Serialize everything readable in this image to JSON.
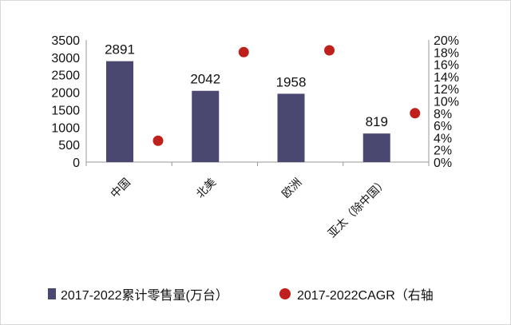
{
  "colors": {
    "bar": "#4a4870",
    "dot": "#c0201b",
    "axis": "#9a9a9a"
  },
  "chart_data": {
    "type": "bar",
    "categories": [
      "中国",
      "北美",
      "欧洲",
      "亚太（除中国）"
    ],
    "series": [
      {
        "name": "2017-2022累计零售量(万台）",
        "type": "bar",
        "axis": "left",
        "values": [
          2891,
          2042,
          1958,
          819
        ]
      },
      {
        "name": "2017-2022CAGR（右轴",
        "type": "scatter",
        "axis": "right",
        "values": [
          3.5,
          18.0,
          18.3,
          8.0
        ]
      }
    ],
    "data_labels": [
      "2891",
      "2042",
      "1958",
      "819"
    ],
    "y_left": {
      "ticks": [
        "0",
        "500",
        "1000",
        "1500",
        "2000",
        "2500",
        "3000",
        "3500"
      ],
      "range": [
        0,
        3500
      ]
    },
    "y_right": {
      "ticks": [
        "0%",
        "2%",
        "4%",
        "6%",
        "8%",
        "10%",
        "12%",
        "14%",
        "16%",
        "18%",
        "20%"
      ],
      "range": [
        0,
        20
      ]
    },
    "legend": {
      "position": "bottom",
      "bar_label": "2017-2022累计零售量(万台）",
      "dot_label": "2017-2022CAGR（右轴"
    },
    "grid": false
  }
}
